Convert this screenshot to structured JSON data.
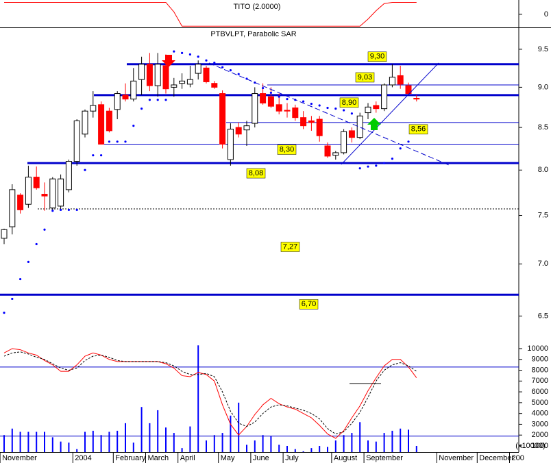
{
  "chart_data": [
    {
      "type": "line",
      "title": "TITO (2.0000)",
      "color": "#ff0000",
      "values": [
        1,
        1,
        1,
        1,
        1,
        1,
        1,
        1,
        1,
        1,
        1,
        1,
        1,
        1,
        1,
        1,
        1,
        1,
        1,
        1,
        1,
        0.2,
        -1,
        -1,
        -1,
        -1,
        -1,
        -1,
        -1,
        -1,
        -1,
        -1,
        -1,
        -1,
        -1,
        -1,
        -1,
        -1,
        -1,
        -1,
        -1,
        -1,
        -1,
        -1,
        -1,
        -0.4,
        0.3,
        0.9,
        1,
        1,
        1,
        1,
        null,
        null,
        null,
        null,
        null,
        null,
        null,
        null,
        null,
        null,
        null,
        null
      ],
      "ylim": [
        -1.1,
        1.2
      ],
      "yticks": [
        0
      ]
    },
    {
      "type": "candlestick",
      "title": "PTBVLPT, Parabolic SAR",
      "log_scale": true,
      "up_color": "#ffffff",
      "down_color": "#ff0000",
      "open": [
        7.26,
        7.38,
        7.72,
        7.62,
        7.92,
        7.73,
        7.58,
        7.6,
        7.78,
        8.1,
        8.42,
        8.7,
        8.78,
        8.7,
        8.72,
        8.9,
        8.85,
        9.1,
        9.3,
        9.02,
        9.28,
        9.0,
        9.05,
        9.04,
        9.18,
        9.25,
        9.05,
        8.92,
        8.12,
        8.5,
        8.47,
        8.55,
        8.92,
        8.88,
        8.78,
        8.71,
        8.74,
        8.62,
        8.58,
        8.6,
        8.28,
        8.17,
        8.2,
        8.46,
        8.38,
        8.68,
        8.77,
        8.73,
        9.03,
        9.15,
        9.02,
        8.86,
        null,
        null,
        null,
        null,
        null,
        null,
        null,
        null,
        null,
        null,
        null,
        null
      ],
      "high": [
        7.36,
        7.84,
        7.74,
        8.05,
        8.04,
        7.86,
        7.92,
        7.95,
        8.12,
        8.6,
        8.72,
        8.95,
        8.82,
        8.74,
        8.95,
        9.05,
        9.25,
        9.4,
        9.45,
        9.45,
        9.43,
        9.12,
        9.18,
        9.28,
        9.35,
        9.28,
        9.08,
        8.96,
        8.55,
        8.56,
        8.58,
        9.0,
        9.05,
        9.0,
        8.92,
        8.8,
        8.78,
        8.7,
        8.64,
        8.64,
        8.32,
        8.22,
        8.48,
        8.5,
        8.68,
        8.8,
        8.82,
        9.05,
        9.3,
        9.28,
        9.06,
        8.9,
        null,
        null,
        null,
        null,
        null,
        null,
        null,
        null,
        null,
        null,
        null,
        null
      ],
      "low": [
        7.2,
        7.3,
        7.52,
        7.58,
        7.78,
        7.55,
        7.55,
        7.56,
        7.75,
        8.05,
        8.38,
        8.62,
        8.3,
        8.44,
        8.6,
        8.82,
        8.82,
        8.9,
        8.95,
        8.88,
        8.92,
        8.88,
        8.98,
        9.0,
        9.1,
        9.05,
        8.98,
        8.25,
        8.05,
        8.38,
        8.28,
        8.5,
        8.78,
        8.74,
        8.66,
        8.62,
        8.58,
        8.48,
        8.46,
        8.33,
        8.14,
        8.12,
        8.18,
        8.32,
        8.36,
        8.6,
        8.68,
        8.7,
        9.0,
        8.98,
        8.9,
        8.82,
        null,
        null,
        null,
        null,
        null,
        null,
        null,
        null,
        null,
        null,
        null,
        null
      ],
      "close": [
        7.35,
        7.78,
        7.56,
        7.92,
        7.8,
        7.71,
        7.9,
        7.9,
        8.1,
        8.58,
        8.7,
        8.77,
        8.3,
        8.46,
        8.92,
        8.85,
        9.08,
        9.3,
        9.02,
        9.3,
        8.98,
        9.03,
        9.08,
        9.1,
        9.3,
        9.07,
        9.0,
        8.3,
        8.48,
        8.42,
        8.52,
        8.92,
        8.8,
        8.76,
        8.7,
        8.7,
        8.62,
        8.52,
        8.56,
        8.4,
        8.16,
        8.2,
        8.45,
        8.38,
        8.64,
        8.75,
        8.73,
        9.03,
        9.13,
        9.04,
        8.92,
        8.85,
        null,
        null,
        null,
        null,
        null,
        null,
        null,
        null,
        null,
        null,
        null,
        null
      ],
      "sar": {
        "color": "#0000ff",
        "values": [
          6.53,
          6.66,
          6.85,
          7.02,
          7.2,
          7.35,
          7.55,
          7.56,
          7.56,
          7.56,
          8.0,
          8.17,
          8.17,
          8.33,
          8.33,
          8.33,
          8.52,
          8.73,
          8.84,
          8.84,
          8.84,
          9.47,
          9.45,
          9.43,
          9.4,
          9.35,
          9.32,
          9.26,
          9.22,
          9.17,
          9.11,
          9.06,
          8.99,
          8.93,
          8.88,
          8.85,
          8.84,
          8.82,
          8.79,
          8.77,
          8.74,
          8.73,
          8.71,
          8.67,
          8.02,
          8.04,
          8.05,
          8.08,
          8.13,
          8.25,
          8.33,
          null,
          null,
          null,
          null,
          null,
          null,
          null,
          null,
          null,
          null,
          null,
          null,
          null
        ]
      },
      "levels": [
        {
          "value": 9.3,
          "label": "9,30"
        },
        {
          "value": 9.03,
          "label": "9,03"
        },
        {
          "value": 8.9,
          "label": "8,90"
        },
        {
          "value": 8.56,
          "label": "8,56"
        },
        {
          "value": 8.3,
          "label": "8,30"
        },
        {
          "value": 8.08,
          "label": "8,08"
        },
        {
          "value": 6.7,
          "label": "6,70"
        }
      ],
      "level_color": "#0000cc",
      "label_color": "#ffff00",
      "dashed_level": 7.57,
      "annotations": [
        {
          "value": 7.27,
          "label": "7,27"
        }
      ],
      "ylim": [
        6.26,
        9.8
      ],
      "yticks": [
        {
          "value": 9.5,
          "label": "9.5"
        },
        {
          "value": 9,
          "label": "9.0"
        },
        {
          "value": 8.5,
          "label": "8.5"
        },
        {
          "value": 8,
          "label": "8.0"
        },
        {
          "value": 7.5,
          "label": "7.5"
        },
        {
          "value": 7,
          "label": "7.0"
        },
        {
          "value": 6.5,
          "label": "6.5"
        }
      ]
    },
    {
      "type": "volume-stochastic",
      "categories": [
        "November",
        null,
        null,
        null,
        null,
        null,
        null,
        null,
        null,
        "2004",
        null,
        null,
        null,
        null,
        "February",
        null,
        null,
        null,
        "March",
        null,
        null,
        null,
        "April",
        null,
        null,
        null,
        null,
        "May",
        null,
        null,
        null,
        "June",
        null,
        null,
        null,
        "July",
        null,
        null,
        null,
        null,
        null,
        "August",
        null,
        null,
        null,
        "September",
        null,
        null,
        null,
        null,
        null,
        null,
        null,
        null,
        "November",
        null,
        null,
        null,
        null,
        "December",
        null,
        null,
        null,
        "200"
      ],
      "volume": {
        "color": "#0000ff",
        "values": [
          2000,
          2600,
          2300,
          2300,
          2300,
          2300,
          1800,
          1400,
          1300,
          700,
          2300,
          2400,
          2000,
          2300,
          2400,
          3100,
          1300,
          4600,
          3100,
          4300,
          2700,
          2200,
          800,
          2800,
          10300,
          1500,
          2000,
          2200,
          3800,
          5000,
          1100,
          1500,
          2000,
          1900,
          1100,
          1000,
          700,
          500,
          800,
          1000,
          900,
          1500,
          2000,
          2200,
          3200,
          1500,
          1400,
          2200,
          2400,
          2600,
          2500,
          1000,
          null,
          null,
          null,
          null,
          null,
          null,
          null,
          null,
          null,
          null,
          null,
          null
        ]
      },
      "lines": [
        {
          "color": "#ff0000",
          "dash": false,
          "values": [
            9600,
            10000,
            9900,
            9600,
            9400,
            8900,
            8500,
            7900,
            7900,
            8500,
            9300,
            9600,
            9400,
            9000,
            8800,
            8800,
            8800,
            8800,
            8800,
            8800,
            8600,
            8200,
            7500,
            7400,
            7800,
            7600,
            7000,
            4800,
            3000,
            2000,
            2800,
            3900,
            4800,
            5400,
            4900,
            4600,
            4400,
            4000,
            3600,
            2900,
            2100,
            1700,
            2400,
            3600,
            4700,
            6100,
            7300,
            8400,
            9000,
            9000,
            8300,
            7300,
            null,
            null,
            null,
            null,
            null,
            null,
            null,
            null,
            null,
            null,
            null,
            null
          ]
        },
        {
          "color": "#000000",
          "dash": true,
          "values": [
            9300,
            9600,
            9700,
            9500,
            9200,
            9000,
            8600,
            8200,
            8000,
            8200,
            8900,
            9300,
            9400,
            9200,
            8900,
            8800,
            8800,
            8800,
            8800,
            8800,
            8700,
            8400,
            7900,
            7600,
            7600,
            7700,
            7400,
            6000,
            4200,
            3100,
            2800,
            3200,
            4000,
            4600,
            4800,
            4700,
            4500,
            4300,
            4000,
            3500,
            2600,
            2100,
            2300,
            3100,
            4100,
            5500,
            7000,
            8000,
            8500,
            8700,
            8400,
            7900,
            null,
            null,
            null,
            null,
            null,
            null,
            null,
            null,
            null,
            null,
            null,
            null
          ]
        }
      ],
      "hlines": [
        8300,
        1900
      ],
      "hline_color": "#0000cc",
      "axis_note": "(x10000)",
      "ylim": [
        430,
        10570
      ],
      "yticks": [
        10000,
        9000,
        8000,
        7000,
        6000,
        5000,
        4000,
        3000,
        2000,
        1000
      ]
    }
  ]
}
